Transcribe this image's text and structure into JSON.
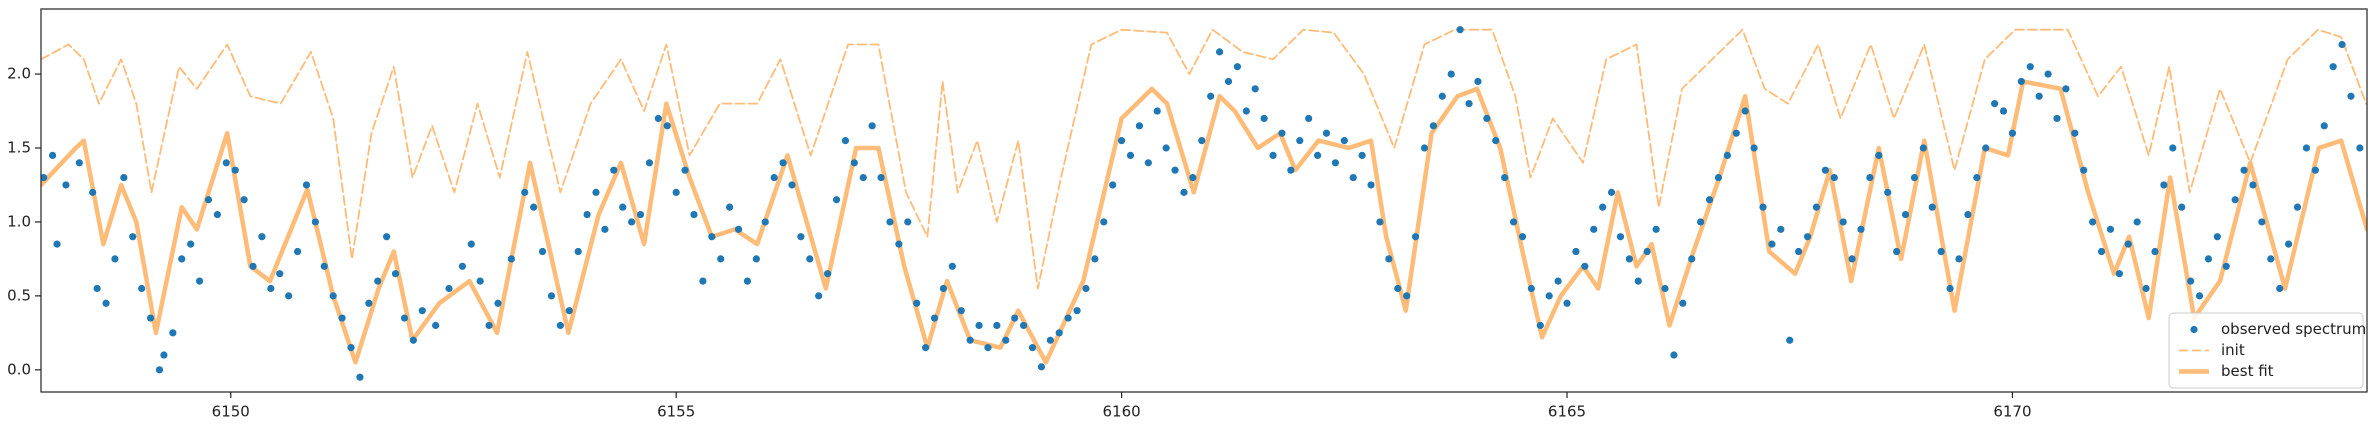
{
  "chart_data": {
    "type": "line",
    "xlim": [
      6147.87,
      6173.98
    ],
    "ylim": [
      -0.15,
      2.44
    ],
    "xticks": [
      6150,
      6155,
      6160,
      6165,
      6170
    ],
    "yticks": [
      {
        "value": 0,
        "label": "0.0"
      },
      {
        "value": 0.5,
        "label": "0.5"
      },
      {
        "value": 1,
        "label": "1.0"
      },
      {
        "value": 1.5,
        "label": "1.5"
      },
      {
        "value": 2,
        "label": "2.0"
      }
    ],
    "grid": false,
    "legend": "lower right",
    "series": [
      {
        "name": "observed spectrum",
        "type": "scatter",
        "color": "#1f77b4",
        "x": [
          6147.9,
          6148.0,
          6148.05,
          6148.15,
          6148.3,
          6148.45,
          6148.5,
          6148.6,
          6148.7,
          6148.8,
          6148.9,
          6149.0,
          6149.1,
          6149.2,
          6149.25,
          6149.35,
          6149.45,
          6149.55,
          6149.65,
          6149.75,
          6149.85,
          6149.95,
          6150.05,
          6150.15,
          6150.25,
          6150.35,
          6150.45,
          6150.55,
          6150.65,
          6150.75,
          6150.85,
          6150.95,
          6151.05,
          6151.15,
          6151.25,
          6151.35,
          6151.45,
          6151.55,
          6151.65,
          6151.75,
          6151.85,
          6151.95,
          6152.05,
          6152.15,
          6152.3,
          6152.45,
          6152.6,
          6152.7,
          6152.8,
          6152.9,
          6153.0,
          6153.15,
          6153.3,
          6153.4,
          6153.5,
          6153.6,
          6153.7,
          6153.8,
          6153.9,
          6154.0,
          6154.1,
          6154.2,
          6154.3,
          6154.4,
          6154.5,
          6154.6,
          6154.7,
          6154.8,
          6154.9,
          6155.0,
          6155.1,
          6155.2,
          6155.3,
          6155.4,
          6155.5,
          6155.6,
          6155.7,
          6155.8,
          6155.9,
          6156.0,
          6156.1,
          6156.2,
          6156.3,
          6156.4,
          6156.5,
          6156.6,
          6156.7,
          6156.8,
          6156.9,
          6157.0,
          6157.1,
          6157.2,
          6157.3,
          6157.4,
          6157.5,
          6157.6,
          6157.7,
          6157.8,
          6157.9,
          6158.0,
          6158.1,
          6158.2,
          6158.3,
          6158.4,
          6158.5,
          6158.6,
          6158.7,
          6158.8,
          6158.9,
          6159.0,
          6159.1,
          6159.2,
          6159.3,
          6159.4,
          6159.5,
          6159.6,
          6159.7,
          6159.8,
          6159.9,
          6160.0,
          6160.1,
          6160.2,
          6160.3,
          6160.4,
          6160.5,
          6160.6,
          6160.7,
          6160.8,
          6160.9,
          6161.0,
          6161.1,
          6161.2,
          6161.3,
          6161.4,
          6161.5,
          6161.6,
          6161.7,
          6161.8,
          6161.9,
          6162.0,
          6162.1,
          6162.2,
          6162.3,
          6162.4,
          6162.5,
          6162.6,
          6162.7,
          6162.8,
          6162.9,
          6163.0,
          6163.1,
          6163.2,
          6163.3,
          6163.4,
          6163.5,
          6163.6,
          6163.7,
          6163.8,
          6163.9,
          6164.0,
          6164.1,
          6164.2,
          6164.3,
          6164.4,
          6164.5,
          6164.6,
          6164.7,
          6164.8,
          6164.9,
          6165.0,
          6165.1,
          6165.2,
          6165.3,
          6165.4,
          6165.5,
          6165.6,
          6165.7,
          6165.8,
          6165.9,
          6166.0,
          6166.1,
          6166.2,
          6166.3,
          6166.4,
          6166.5,
          6166.6,
          6166.7,
          6166.8,
          6166.9,
          6167.0,
          6167.1,
          6167.2,
          6167.3,
          6167.4,
          6167.5,
          6167.6,
          6167.7,
          6167.8,
          6167.9,
          6168.0,
          6168.1,
          6168.2,
          6168.3,
          6168.4,
          6168.5,
          6168.6,
          6168.7,
          6168.8,
          6168.9,
          6169.0,
          6169.1,
          6169.2,
          6169.3,
          6169.4,
          6169.5,
          6169.6,
          6169.7,
          6169.8,
          6169.9,
          6170.0,
          6170.1,
          6170.2,
          6170.3,
          6170.4,
          6170.5,
          6170.6,
          6170.7,
          6170.8,
          6170.9,
          6171.0,
          6171.1,
          6171.2,
          6171.3,
          6171.4,
          6171.5,
          6171.6,
          6171.7,
          6171.8,
          6171.9,
          6172.0,
          6172.1,
          6172.2,
          6172.3,
          6172.4,
          6172.5,
          6172.6,
          6172.7,
          6172.8,
          6172.9,
          6173.0,
          6173.1,
          6173.2,
          6173.3,
          6173.4,
          6173.5,
          6173.6,
          6173.7,
          6173.8,
          6173.9
        ],
        "values": [
          1.3,
          1.45,
          0.85,
          1.25,
          1.4,
          1.2,
          0.55,
          0.45,
          0.75,
          1.3,
          0.9,
          0.55,
          0.35,
          0.0,
          0.1,
          0.25,
          0.75,
          0.85,
          0.6,
          1.15,
          1.05,
          1.4,
          1.35,
          1.15,
          0.7,
          0.9,
          0.55,
          0.65,
          0.5,
          0.8,
          1.25,
          1.0,
          0.7,
          0.5,
          0.35,
          0.15,
          -0.05,
          0.45,
          0.6,
          0.9,
          0.65,
          0.35,
          0.2,
          0.4,
          0.3,
          0.55,
          0.7,
          0.85,
          0.6,
          0.3,
          0.45,
          0.75,
          1.2,
          1.1,
          0.8,
          0.5,
          0.3,
          0.4,
          0.8,
          1.05,
          1.2,
          0.95,
          1.35,
          1.1,
          1.0,
          1.05,
          1.4,
          1.7,
          1.65,
          1.2,
          1.35,
          1.05,
          0.6,
          0.9,
          0.75,
          1.1,
          0.95,
          0.6,
          0.75,
          1.0,
          1.3,
          1.4,
          1.25,
          0.9,
          0.75,
          0.5,
          0.65,
          1.15,
          1.55,
          1.4,
          1.3,
          1.65,
          1.3,
          1.0,
          0.85,
          1.0,
          0.45,
          0.15,
          0.35,
          0.55,
          0.7,
          0.4,
          0.2,
          0.3,
          0.15,
          0.3,
          0.2,
          0.35,
          0.3,
          0.15,
          0.02,
          0.2,
          0.25,
          0.35,
          0.4,
          0.55,
          0.75,
          1.0,
          1.25,
          1.55,
          1.45,
          1.65,
          1.4,
          1.75,
          1.5,
          1.35,
          1.2,
          1.3,
          1.55,
          1.85,
          2.15,
          1.95,
          2.05,
          1.75,
          1.9,
          1.7,
          1.45,
          1.6,
          1.35,
          1.55,
          1.7,
          1.45,
          1.6,
          1.4,
          1.55,
          1.3,
          1.45,
          1.25,
          1.0,
          0.75,
          0.55,
          0.5,
          0.9,
          1.5,
          1.65,
          1.85,
          2.0,
          2.3,
          1.8,
          1.95,
          1.7,
          1.55,
          1.3,
          1.0,
          0.9,
          0.55,
          0.3,
          0.5,
          0.6,
          0.45,
          0.8,
          0.7,
          0.95,
          1.1,
          1.2,
          0.9,
          0.75,
          0.6,
          0.8,
          0.95,
          0.55,
          0.1,
          0.45,
          0.75,
          1.0,
          1.15,
          1.3,
          1.45,
          1.6,
          1.75,
          1.5,
          1.1,
          0.85,
          0.95,
          0.2,
          0.8,
          0.9,
          1.1,
          1.35,
          1.3,
          1.0,
          0.75,
          0.95,
          1.3,
          1.45,
          1.2,
          0.8,
          1.05,
          1.3,
          1.5,
          1.1,
          0.8,
          0.55,
          0.75,
          1.05,
          1.3,
          1.5,
          1.8,
          1.75,
          1.6,
          1.95,
          2.05,
          1.85,
          2.0,
          1.7,
          1.9,
          1.6,
          1.35,
          1.0,
          0.8,
          0.95,
          0.65,
          0.85,
          1.0,
          0.55,
          0.8,
          1.25,
          1.5,
          1.1,
          0.6,
          0.5,
          0.75,
          0.9,
          0.7,
          1.15,
          1.35,
          1.25,
          1.0,
          0.75,
          0.55,
          0.85,
          1.1,
          1.5,
          1.35,
          1.65,
          2.05,
          2.2,
          1.85,
          1.5
        ]
      },
      {
        "name": "init",
        "type": "line",
        "style": "dashed",
        "color": "#ffbb78",
        "x": [
          6147.87,
          6148.18,
          6148.35,
          6148.52,
          6148.77,
          6148.94,
          6149.11,
          6149.42,
          6149.62,
          6149.96,
          6150.22,
          6150.56,
          6150.9,
          6151.15,
          6151.36,
          6151.58,
          6151.83,
          6152.04,
          6152.26,
          6152.51,
          6152.77,
          6153.02,
          6153.33,
          6153.7,
          6154.04,
          6154.38,
          6154.64,
          6154.89,
          6155.15,
          6155.49,
          6155.91,
          6156.17,
          6156.51,
          6156.93,
          6157.27,
          6157.58,
          6157.82,
          6157.99,
          6158.16,
          6158.38,
          6158.6,
          6158.84,
          6159.06,
          6159.32,
          6159.66,
          6160.0,
          6160.51,
          6160.76,
          6161.02,
          6161.36,
          6161.7,
          6162.04,
          6162.38,
          6162.72,
          6163.06,
          6163.4,
          6163.74,
          6164.16,
          6164.42,
          6164.59,
          6164.84,
          6165.18,
          6165.44,
          6165.78,
          6166.03,
          6166.29,
          6166.63,
          6166.97,
          6167.22,
          6167.48,
          6167.82,
          6168.07,
          6168.41,
          6168.67,
          6169.01,
          6169.35,
          6169.69,
          6170.03,
          6170.62,
          6170.96,
          6171.22,
          6171.53,
          6171.76,
          6171.99,
          6172.33,
          6172.67,
          6173.09,
          6173.43,
          6173.69,
          6173.97
        ],
        "values": [
          2.1,
          2.2,
          2.1,
          1.8,
          2.1,
          1.8,
          1.2,
          2.05,
          1.9,
          2.2,
          1.85,
          1.8,
          2.15,
          1.7,
          0.75,
          1.6,
          2.05,
          1.3,
          1.65,
          1.2,
          1.8,
          1.3,
          2.15,
          1.2,
          1.8,
          2.1,
          1.75,
          2.2,
          1.45,
          1.8,
          1.8,
          2.1,
          1.45,
          2.2,
          2.2,
          1.2,
          0.9,
          1.95,
          1.2,
          1.55,
          1.0,
          1.55,
          0.55,
          1.3,
          2.2,
          2.3,
          2.28,
          2.0,
          2.3,
          2.15,
          2.1,
          2.3,
          2.28,
          2.0,
          1.5,
          2.2,
          2.3,
          2.3,
          1.85,
          1.3,
          1.7,
          1.4,
          2.1,
          2.2,
          1.1,
          1.9,
          2.1,
          2.3,
          1.9,
          1.8,
          2.2,
          1.7,
          2.2,
          1.7,
          2.2,
          1.35,
          2.1,
          2.3,
          2.3,
          1.85,
          2.05,
          1.45,
          2.05,
          1.2,
          1.9,
          1.4,
          2.1,
          2.3,
          2.25,
          1.8
        ]
      },
      {
        "name": "best fit",
        "type": "line",
        "style": "solid",
        "color": "#ffbb78",
        "x": [
          6147.87,
          6148.26,
          6148.35,
          6148.57,
          6148.77,
          6148.94,
          6149.16,
          6149.45,
          6149.62,
          6149.96,
          6150.22,
          6150.44,
          6150.86,
          6151.15,
          6151.4,
          6151.66,
          6151.83,
          6152.04,
          6152.34,
          6152.68,
          6152.99,
          6153.36,
          6153.79,
          6154.13,
          6154.38,
          6154.64,
          6154.89,
          6155.15,
          6155.4,
          6155.66,
          6155.91,
          6156.25,
          6156.68,
          6157.02,
          6157.27,
          6157.56,
          6157.82,
          6158.04,
          6158.3,
          6158.64,
          6158.84,
          6159.15,
          6159.57,
          6160.0,
          6160.34,
          6160.51,
          6160.81,
          6161.1,
          6161.27,
          6161.53,
          6161.78,
          6161.95,
          6162.21,
          6162.55,
          6162.8,
          6162.97,
          6163.19,
          6163.48,
          6163.77,
          6163.99,
          6164.25,
          6164.5,
          6164.72,
          6164.93,
          6165.18,
          6165.35,
          6165.57,
          6165.78,
          6165.95,
          6166.15,
          6166.42,
          6166.71,
          6167.0,
          6167.27,
          6167.56,
          6167.73,
          6167.95,
          6168.19,
          6168.5,
          6168.75,
          6169.01,
          6169.35,
          6169.69,
          6169.95,
          6170.12,
          6170.54,
          6170.85,
          6171.14,
          6171.31,
          6171.53,
          6171.77,
          6172.04,
          6172.33,
          6172.67,
          6173.06,
          6173.44,
          6173.69,
          6173.98
        ],
        "values": [
          1.25,
          1.5,
          1.55,
          0.85,
          1.25,
          1.0,
          0.25,
          1.1,
          0.95,
          1.6,
          0.7,
          0.6,
          1.22,
          0.5,
          0.05,
          0.55,
          0.8,
          0.2,
          0.45,
          0.6,
          0.25,
          1.4,
          0.25,
          1.05,
          1.4,
          0.85,
          1.8,
          1.3,
          0.9,
          0.95,
          0.85,
          1.45,
          0.55,
          1.5,
          1.5,
          0.7,
          0.15,
          0.6,
          0.2,
          0.15,
          0.4,
          0.05,
          0.6,
          1.7,
          1.9,
          1.8,
          1.2,
          1.85,
          1.75,
          1.5,
          1.6,
          1.35,
          1.55,
          1.5,
          1.55,
          0.9,
          0.4,
          1.6,
          1.85,
          1.9,
          1.5,
          0.8,
          0.22,
          0.5,
          0.7,
          0.55,
          1.2,
          0.7,
          0.85,
          0.3,
          0.8,
          1.3,
          1.85,
          0.8,
          0.65,
          0.9,
          1.35,
          0.6,
          1.5,
          0.75,
          1.55,
          0.4,
          1.5,
          1.45,
          1.95,
          1.9,
          1.2,
          0.65,
          0.9,
          0.35,
          1.3,
          0.35,
          0.6,
          1.4,
          0.55,
          1.5,
          1.55,
          0.95
        ]
      }
    ]
  }
}
